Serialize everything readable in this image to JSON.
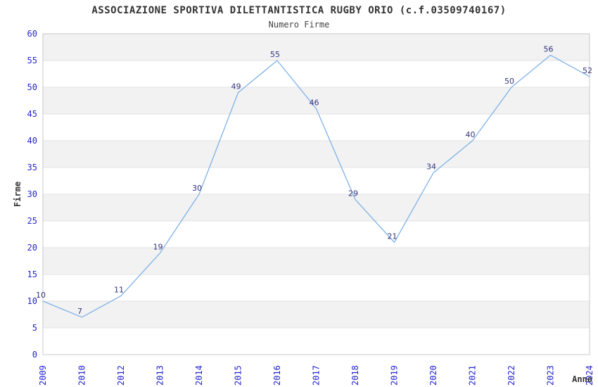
{
  "chart_data": {
    "type": "line",
    "title": "ASSOCIAZIONE SPORTIVA DILETTANTISTICA RUGBY ORIO (c.f.03509740167)",
    "subtitle": "Numero Firme",
    "xlabel": "Anno",
    "ylabel": "Firme",
    "categories": [
      "2009",
      "2010",
      "2012",
      "2013",
      "2014",
      "2015",
      "2016",
      "2017",
      "2018",
      "2019",
      "2020",
      "2021",
      "2022",
      "2023",
      "2024"
    ],
    "values": [
      10,
      7,
      11,
      19,
      30,
      49,
      55,
      46,
      29,
      21,
      34,
      40,
      50,
      56,
      52
    ],
    "ylim": [
      0,
      60
    ],
    "ytick_step": 5,
    "grid": true,
    "legend": "none",
    "plot_bands_alternating": true,
    "colors": {
      "line": "#7FB2E8",
      "data_label": "#33337E",
      "tick_label": "#2424CF",
      "axis_title": "#333333",
      "band_gray": "#F2F2F2",
      "band_white": "#FFFFFF",
      "grid_line": "#E3E3E3",
      "plot_border": "#C8C8C8",
      "title": "#333333",
      "background": "#FFFFFF"
    }
  }
}
